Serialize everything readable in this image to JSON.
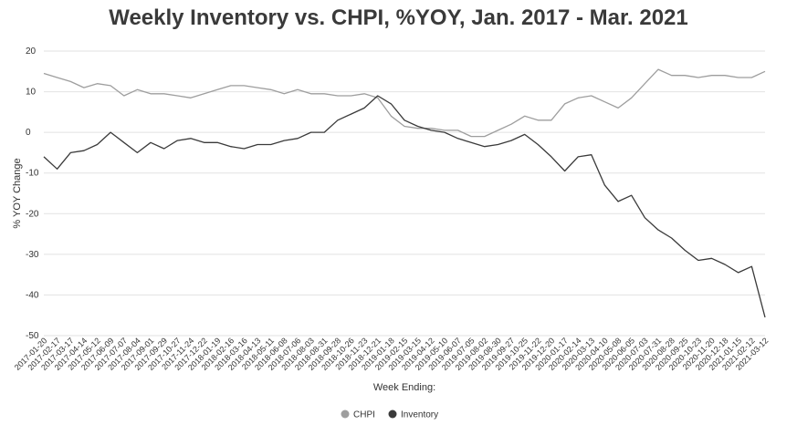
{
  "chart_data": {
    "type": "line",
    "title": "Weekly Inventory vs. CHPI, %YOY, Jan. 2017 - Mar. 2021",
    "xlabel": "Week Ending:",
    "ylabel": "% YOY Change",
    "ylim": [
      -50,
      20
    ],
    "yticks": [
      20,
      10,
      0,
      -10,
      -20,
      -30,
      -40,
      -50
    ],
    "legend_position": "bottom",
    "grid": true,
    "categories": [
      "2017-01-20",
      "2017-02-17",
      "2017-03-17",
      "2017-04-14",
      "2017-05-12",
      "2017-06-09",
      "2017-07-07",
      "2017-08-04",
      "2017-09-01",
      "2017-09-29",
      "2017-10-27",
      "2017-11-24",
      "2017-12-22",
      "2018-01-19",
      "2018-02-16",
      "2018-03-16",
      "2018-04-13",
      "2018-05-11",
      "2018-06-08",
      "2018-07-06",
      "2018-08-03",
      "2018-08-31",
      "2018-09-28",
      "2018-10-26",
      "2018-11-23",
      "2018-12-21",
      "2019-01-18",
      "2019-02-15",
      "2019-03-15",
      "2019-04-12",
      "2019-05-10",
      "2019-06-07",
      "2019-07-05",
      "2019-08-02",
      "2019-08-30",
      "2019-09-27",
      "2019-10-25",
      "2019-11-22",
      "2019-12-20",
      "2020-01-17",
      "2020-02-14",
      "2020-03-13",
      "2020-04-10",
      "2020-05-08",
      "2020-06-05",
      "2020-07-03",
      "2020-07-31",
      "2020-08-28",
      "2020-09-25",
      "2020-10-23",
      "2020-11-20",
      "2020-12-18",
      "2021-01-15",
      "2021-02-12",
      "2021-03-12"
    ],
    "series": [
      {
        "name": "CHPI",
        "color": "#9e9e9e",
        "values": [
          14.5,
          13.5,
          12.5,
          11.0,
          12.0,
          11.5,
          9.0,
          10.5,
          9.5,
          9.5,
          9.0,
          8.5,
          9.5,
          10.5,
          11.5,
          11.5,
          11.0,
          10.5,
          9.5,
          10.5,
          9.5,
          9.5,
          9.0,
          9.0,
          9.5,
          8.5,
          4.0,
          1.5,
          1.0,
          1.0,
          0.5,
          0.5,
          -1.0,
          -1.0,
          0.5,
          2.0,
          4.0,
          3.0,
          3.0,
          7.0,
          8.5,
          9.0,
          7.5,
          6.0,
          8.5,
          12.0,
          15.5,
          14.0,
          14.0,
          13.5,
          14.0,
          14.0,
          13.5,
          13.5,
          15.0
        ]
      },
      {
        "name": "Inventory",
        "color": "#3a3a3a",
        "values": [
          -6.0,
          -9.0,
          -5.0,
          -4.5,
          -3.0,
          0.0,
          -2.5,
          -5.0,
          -2.5,
          -4.0,
          -2.0,
          -1.5,
          -2.5,
          -2.5,
          -3.5,
          -4.0,
          -3.0,
          -3.0,
          -2.0,
          -1.5,
          0.0,
          0.0,
          3.0,
          4.5,
          6.0,
          9.0,
          7.0,
          3.0,
          1.5,
          0.5,
          0.0,
          -1.5,
          -2.5,
          -3.5,
          -3.0,
          -2.0,
          -0.5,
          -3.0,
          -6.0,
          -9.5,
          -6.0,
          -5.5,
          -13.0,
          -17.0,
          -15.5,
          -21.0,
          -24.0,
          -26.0,
          -29.0,
          -31.5,
          -31.0,
          -32.5,
          -34.5,
          -33.0,
          -45.5
        ]
      }
    ]
  }
}
